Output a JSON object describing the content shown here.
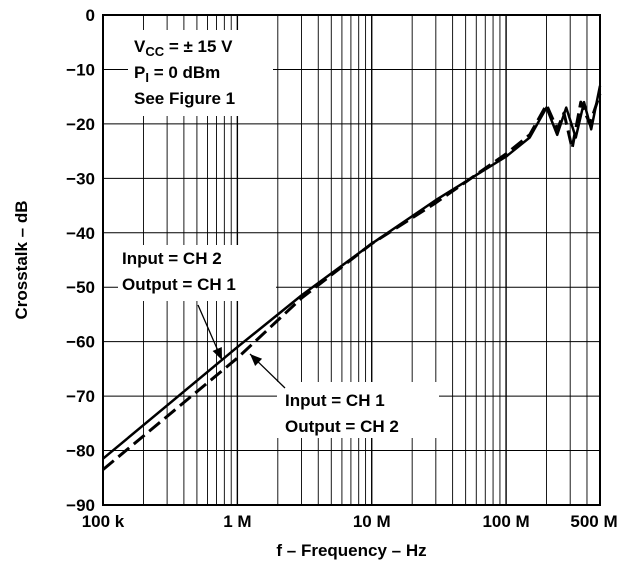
{
  "chart_data": {
    "type": "line",
    "title": "",
    "xlabel": "f – Frequency – Hz",
    "ylabel": "Crosstalk – dB",
    "x_scale": "log",
    "xlim": [
      100000,
      500000000
    ],
    "ylim": [
      -90,
      0
    ],
    "x_ticks": [
      {
        "value": 100000,
        "label": "100 k"
      },
      {
        "value": 1000000,
        "label": "1 M"
      },
      {
        "value": 10000000,
        "label": "10 M"
      },
      {
        "value": 100000000,
        "label": "100 M"
      },
      {
        "value": 500000000,
        "label": "500 M"
      }
    ],
    "y_ticks": [
      0,
      -10,
      -20,
      -30,
      -40,
      -50,
      -60,
      -70,
      -80,
      -90
    ],
    "grid": true,
    "conditions": {
      "vcc": {
        "prefix": "V",
        "sub": "CC",
        "rest": " = ± 15 V"
      },
      "pi": {
        "prefix": "P",
        "sub": "I",
        "rest": " = 0 dBm"
      },
      "figure": "See Figure 1"
    },
    "series": [
      {
        "label_lines": [
          "Input = CH 2",
          "Output = CH 1"
        ],
        "style": "solid",
        "points": [
          [
            100000,
            -81.5
          ],
          [
            1000000,
            -61
          ],
          [
            3000000,
            -51.5
          ],
          [
            10000000,
            -42
          ],
          [
            30000000,
            -34
          ],
          [
            100000000,
            -26
          ],
          [
            150000000,
            -22.5
          ],
          [
            200000000,
            -17
          ],
          [
            240000000,
            -22
          ],
          [
            280000000,
            -17
          ],
          [
            330000000,
            -22.5
          ],
          [
            380000000,
            -16
          ],
          [
            430000000,
            -21
          ],
          [
            500000000,
            -13
          ]
        ]
      },
      {
        "label_lines": [
          "Input = CH 1",
          "Output = CH 2"
        ],
        "style": "dashed",
        "points": [
          [
            100000,
            -83.5
          ],
          [
            1000000,
            -63
          ],
          [
            3000000,
            -52
          ],
          [
            10000000,
            -42
          ],
          [
            30000000,
            -34.5
          ],
          [
            100000000,
            -25.5
          ],
          [
            150000000,
            -22
          ],
          [
            200000000,
            -16.5
          ],
          [
            240000000,
            -21
          ],
          [
            270000000,
            -18
          ],
          [
            310000000,
            -24.5
          ],
          [
            360000000,
            -16
          ],
          [
            420000000,
            -20
          ],
          [
            500000000,
            -14.5
          ]
        ]
      }
    ]
  }
}
